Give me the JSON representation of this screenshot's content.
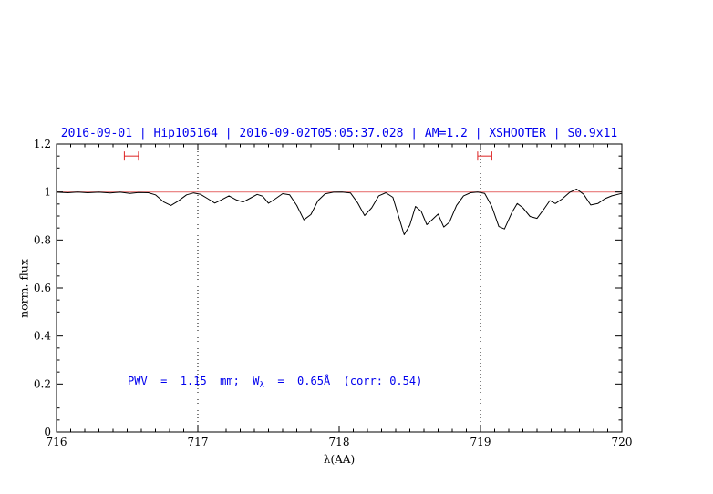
{
  "chart_data": {
    "type": "line",
    "title": "2016-09-01 | Hip105164 | 2016-09-02T05:05:37.028 | AM=1.2 | XSHOOTER | S0.9x11",
    "xlabel": "λ(AA)",
    "ylabel": "norm. flux",
    "xlim": [
      716,
      720
    ],
    "ylim": [
      0,
      1.2
    ],
    "x_minor_step": 0.1,
    "y_minor_step": 0.05,
    "x_ticks": [
      {
        "v": 716,
        "label": "716"
      },
      {
        "v": 717,
        "label": "717"
      },
      {
        "v": 718,
        "label": "718"
      },
      {
        "v": 719,
        "label": "719"
      },
      {
        "v": 720,
        "label": "720"
      }
    ],
    "y_ticks": [
      {
        "v": 0,
        "label": "0"
      },
      {
        "v": 0.2,
        "label": "0.2"
      },
      {
        "v": 0.4,
        "label": "0.4"
      },
      {
        "v": 0.6,
        "label": "0.6"
      },
      {
        "v": 0.8,
        "label": "0.8"
      },
      {
        "v": 1,
        "label": "1"
      },
      {
        "v": 1.2,
        "label": "1.2"
      }
    ],
    "dotted_vlines": [
      717,
      719
    ],
    "continuum_y": 1.0,
    "region_markers": [
      {
        "x1": 716.48,
        "x2": 716.58,
        "y": 1.15
      },
      {
        "x1": 718.98,
        "x2": 719.08,
        "y": 1.15
      }
    ],
    "annotation": {
      "pre": "PWV  =  1.15  mm;  W",
      "sub": "λ",
      "post": "  =  0.65Å  (corr: 0.54)"
    },
    "colors": {
      "title": "#0000ee",
      "annotation": "#0000ee",
      "continuum": "#e87878",
      "marker": "#dd2222",
      "spectrum": "#000000",
      "axis": "#000000"
    },
    "series": [
      {
        "name": "observed-spectrum",
        "points": [
          [
            716.0,
            0.999
          ],
          [
            716.08,
            0.997
          ],
          [
            716.15,
            1.0
          ],
          [
            716.22,
            0.997
          ],
          [
            716.3,
            0.999
          ],
          [
            716.38,
            0.996
          ],
          [
            716.45,
            0.999
          ],
          [
            716.52,
            0.994
          ],
          [
            716.58,
            0.998
          ],
          [
            716.65,
            0.997
          ],
          [
            716.7,
            0.988
          ],
          [
            716.76,
            0.958
          ],
          [
            716.81,
            0.944
          ],
          [
            716.86,
            0.962
          ],
          [
            716.92,
            0.988
          ],
          [
            716.97,
            0.996
          ],
          [
            717.02,
            0.99
          ],
          [
            717.07,
            0.972
          ],
          [
            717.12,
            0.954
          ],
          [
            717.17,
            0.968
          ],
          [
            717.22,
            0.984
          ],
          [
            717.27,
            0.968
          ],
          [
            717.32,
            0.958
          ],
          [
            717.37,
            0.974
          ],
          [
            717.42,
            0.99
          ],
          [
            717.46,
            0.982
          ],
          [
            717.5,
            0.953
          ],
          [
            717.55,
            0.972
          ],
          [
            717.6,
            0.993
          ],
          [
            717.65,
            0.988
          ],
          [
            717.7,
            0.944
          ],
          [
            717.75,
            0.884
          ],
          [
            717.8,
            0.906
          ],
          [
            717.85,
            0.964
          ],
          [
            717.9,
            0.992
          ],
          [
            717.96,
            0.999
          ],
          [
            718.02,
            1.0
          ],
          [
            718.08,
            0.996
          ],
          [
            718.13,
            0.956
          ],
          [
            718.18,
            0.902
          ],
          [
            718.23,
            0.934
          ],
          [
            718.28,
            0.984
          ],
          [
            718.33,
            0.997
          ],
          [
            718.38,
            0.978
          ],
          [
            718.42,
            0.9
          ],
          [
            718.46,
            0.822
          ],
          [
            718.5,
            0.862
          ],
          [
            718.54,
            0.94
          ],
          [
            718.58,
            0.92
          ],
          [
            718.62,
            0.864
          ],
          [
            718.66,
            0.886
          ],
          [
            718.7,
            0.908
          ],
          [
            718.74,
            0.854
          ],
          [
            718.78,
            0.874
          ],
          [
            718.83,
            0.944
          ],
          [
            718.88,
            0.984
          ],
          [
            718.93,
            0.997
          ],
          [
            718.98,
            1.0
          ],
          [
            719.03,
            0.994
          ],
          [
            719.08,
            0.94
          ],
          [
            719.13,
            0.856
          ],
          [
            719.17,
            0.846
          ],
          [
            719.22,
            0.912
          ],
          [
            719.26,
            0.952
          ],
          [
            719.3,
            0.934
          ],
          [
            719.35,
            0.898
          ],
          [
            719.4,
            0.89
          ],
          [
            719.45,
            0.93
          ],
          [
            719.49,
            0.964
          ],
          [
            719.53,
            0.952
          ],
          [
            719.58,
            0.972
          ],
          [
            719.63,
            0.998
          ],
          [
            719.68,
            1.012
          ],
          [
            719.73,
            0.99
          ],
          [
            719.78,
            0.946
          ],
          [
            719.83,
            0.952
          ],
          [
            719.88,
            0.972
          ],
          [
            719.93,
            0.984
          ],
          [
            720.0,
            0.994
          ]
        ]
      }
    ]
  }
}
